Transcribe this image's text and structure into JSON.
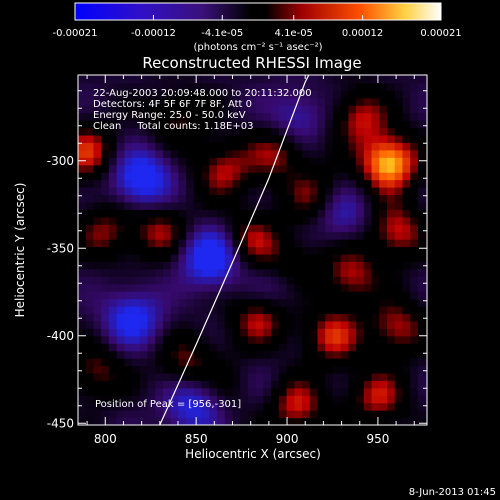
{
  "colorbar": {
    "ticks": [
      "-0.00021",
      "-0.00012",
      "-4.1e-05",
      "4.1e-05",
      "0.00012",
      "0.00021"
    ],
    "tick_values": [
      -0.00021,
      -0.00012,
      -4.1e-05,
      4.1e-05,
      0.00012,
      0.00021
    ],
    "range": [
      -0.00021,
      0.00021
    ],
    "unit_label": "(photons cm⁻² s⁻¹ asec⁻²)",
    "colors": [
      "#0000ff",
      "#4000b0",
      "#000000",
      "#c00000",
      "#ff6000",
      "#ffffff"
    ]
  },
  "chart_data": {
    "type": "heatmap",
    "title": "Reconstructed RHESSI Image",
    "xlabel": "Heliocentric X (arcsec)",
    "ylabel": "Heliocentric Y (arcsec)",
    "xlim": [
      785,
      977
    ],
    "ylim": [
      -451,
      -251
    ],
    "xticks": [
      800,
      850,
      900,
      950
    ],
    "yticks": [
      -300,
      -350,
      -400,
      -450
    ],
    "info_lines": [
      "22-Aug-2003 20:09:48.000 to 20:11:32.000",
      "Detectors: 4F 5F 6F 7F 8F, Att 0",
      "Energy Range: 25.0 - 50.0 keV",
      "Clean     Total counts: 1.18E+03"
    ],
    "peak_text": "Position of Peak = [956,-301]",
    "peak": [
      956,
      -301
    ],
    "limb_curve": [
      [
        830,
        -451
      ],
      [
        850,
        -405
      ],
      [
        870,
        -358
      ],
      [
        890,
        -310
      ],
      [
        910,
        -255
      ],
      [
        912,
        -251
      ]
    ],
    "blobs": [
      {
        "x": 956,
        "y": -301,
        "v": 1.0
      },
      {
        "x": 940,
        "y": -275,
        "v": 0.55
      },
      {
        "x": 960,
        "y": -340,
        "v": 0.6
      },
      {
        "x": 935,
        "y": -365,
        "v": 0.55
      },
      {
        "x": 925,
        "y": -400,
        "v": 0.6
      },
      {
        "x": 960,
        "y": -395,
        "v": 0.55
      },
      {
        "x": 905,
        "y": -440,
        "v": 0.6
      },
      {
        "x": 950,
        "y": -435,
        "v": 0.55
      },
      {
        "x": 875,
        "y": -430,
        "v": 0.5
      },
      {
        "x": 885,
        "y": -390,
        "v": 0.55
      },
      {
        "x": 880,
        "y": -345,
        "v": 0.5
      },
      {
        "x": 900,
        "y": -360,
        "v": 0.45
      },
      {
        "x": 865,
        "y": -305,
        "v": 0.55
      },
      {
        "x": 895,
        "y": -295,
        "v": 0.5
      },
      {
        "x": 915,
        "y": -320,
        "v": 0.45
      },
      {
        "x": 830,
        "y": -340,
        "v": 0.5
      },
      {
        "x": 790,
        "y": -295,
        "v": 0.6
      },
      {
        "x": 800,
        "y": -340,
        "v": 0.45
      },
      {
        "x": 795,
        "y": -420,
        "v": 0.45
      },
      {
        "x": 845,
        "y": -415,
        "v": 0.45
      },
      {
        "x": 840,
        "y": -275,
        "v": 0.4
      },
      {
        "x": 820,
        "y": -310,
        "v": -0.85
      },
      {
        "x": 858,
        "y": -355,
        "v": -0.9
      },
      {
        "x": 815,
        "y": -390,
        "v": -0.7
      },
      {
        "x": 848,
        "y": -440,
        "v": -0.6
      },
      {
        "x": 880,
        "y": -430,
        "v": -0.45
      },
      {
        "x": 905,
        "y": -275,
        "v": -0.45
      },
      {
        "x": 930,
        "y": -330,
        "v": -0.45
      },
      {
        "x": 895,
        "y": -370,
        "v": -0.4
      }
    ]
  },
  "footer": {
    "date": "8-Jun-2013 01:45"
  }
}
